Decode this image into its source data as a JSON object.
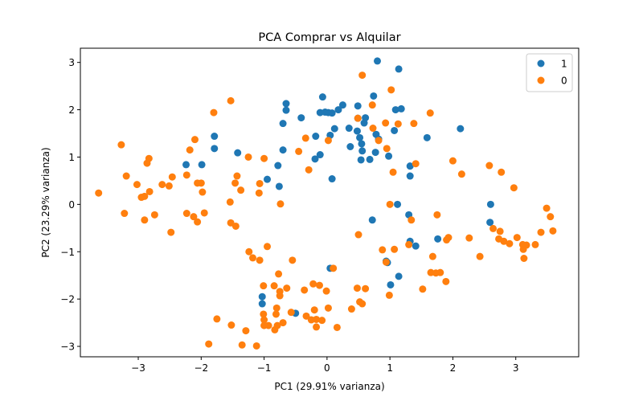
{
  "chart_data": {
    "type": "scatter",
    "title": "PCA Comprar vs Alquilar",
    "xlabel": "PC1 (29.91% varianza)",
    "ylabel": "PC2 (23.29% varianza)",
    "xlim": [
      -3.92,
      4.0
    ],
    "ylim": [
      -3.22,
      3.3
    ],
    "xticks": [
      -3,
      -2,
      -1,
      0,
      1,
      2,
      3
    ],
    "yticks": [
      -3,
      -2,
      -1,
      0,
      1,
      2,
      3
    ],
    "xtick_labels": [
      "−3",
      "−2",
      "−1",
      "0",
      "1",
      "2",
      "3"
    ],
    "ytick_labels": [
      "−3",
      "−2",
      "−1",
      "0",
      "1",
      "2",
      "3"
    ],
    "grid": false,
    "legend_position": "top-right",
    "series": [
      {
        "name": "1",
        "color": "#1f77b4",
        "points": [
          [
            0.8,
            3.03
          ],
          [
            1.14,
            2.86
          ],
          [
            0.74,
            2.29
          ],
          [
            -0.07,
            2.27
          ],
          [
            0.25,
            2.1
          ],
          [
            0.49,
            2.08
          ],
          [
            -0.65,
            2.13
          ],
          [
            -0.65,
            1.99
          ],
          [
            -0.7,
            1.71
          ],
          [
            -0.41,
            1.83
          ],
          [
            1.09,
            2.0
          ],
          [
            1.18,
            2.02
          ],
          [
            0.18,
            2.0
          ],
          [
            -0.11,
            1.94
          ],
          [
            -0.03,
            1.95
          ],
          [
            0.02,
            1.94
          ],
          [
            0.08,
            1.93
          ],
          [
            0.49,
            1.82
          ],
          [
            0.61,
            1.83
          ],
          [
            0.35,
            1.61
          ],
          [
            0.48,
            1.55
          ],
          [
            0.12,
            1.6
          ],
          [
            1.07,
            1.56
          ],
          [
            0.59,
            1.72
          ],
          [
            0.52,
            1.41
          ],
          [
            0.05,
            1.46
          ],
          [
            0.78,
            1.48
          ],
          [
            0.82,
            1.38
          ],
          [
            0.55,
            1.28
          ],
          [
            -0.18,
            1.44
          ],
          [
            2.12,
            1.6
          ],
          [
            1.59,
            1.41
          ],
          [
            0.37,
            1.22
          ],
          [
            0.56,
            1.13
          ],
          [
            0.77,
            1.1
          ],
          [
            -0.7,
            1.15
          ],
          [
            -1.42,
            1.09
          ],
          [
            -1.79,
            1.44
          ],
          [
            -1.79,
            1.18
          ],
          [
            -0.11,
            1.05
          ],
          [
            -0.19,
            0.96
          ],
          [
            0.54,
            0.94
          ],
          [
            0.68,
            0.95
          ],
          [
            0.98,
            1.02
          ],
          [
            1.32,
            0.81
          ],
          [
            -1.99,
            0.84
          ],
          [
            -2.24,
            0.84
          ],
          [
            -0.78,
            0.82
          ],
          [
            1.32,
            0.6
          ],
          [
            0.08,
            0.54
          ],
          [
            -0.95,
            0.53
          ],
          [
            -0.76,
            0.38
          ],
          [
            2.6,
            0.0
          ],
          [
            1.12,
            0.0
          ],
          [
            2.59,
            -0.38
          ],
          [
            0.72,
            -0.33
          ],
          [
            1.3,
            -0.22
          ],
          [
            1.32,
            -0.78
          ],
          [
            1.41,
            -0.88
          ],
          [
            1.76,
            -0.73
          ],
          [
            0.94,
            -1.2
          ],
          [
            0.96,
            -1.23
          ],
          [
            0.05,
            -1.35
          ],
          [
            1.14,
            -1.52
          ],
          [
            1.01,
            -1.7
          ],
          [
            -1.03,
            -1.95
          ],
          [
            -1.03,
            -2.1
          ],
          [
            -0.5,
            -2.3
          ]
        ]
      },
      {
        "name": "0",
        "color": "#ff7f0e",
        "points": [
          [
            0.56,
            2.73
          ],
          [
            1.02,
            2.42
          ],
          [
            -1.53,
            2.19
          ],
          [
            -1.8,
            1.94
          ],
          [
            0.72,
            2.1
          ],
          [
            1.64,
            1.93
          ],
          [
            0.49,
            1.82
          ],
          [
            0.73,
            1.61
          ],
          [
            0.93,
            1.72
          ],
          [
            1.13,
            1.7
          ],
          [
            1.38,
            1.71
          ],
          [
            -2.1,
            1.37
          ],
          [
            -2.18,
            1.15
          ],
          [
            -0.34,
            1.4
          ],
          [
            0.02,
            1.35
          ],
          [
            0.82,
            1.35
          ],
          [
            0.95,
            1.18
          ],
          [
            -3.27,
            1.26
          ],
          [
            -2.83,
            0.97
          ],
          [
            -2.86,
            0.87
          ],
          [
            -1.25,
            1.0
          ],
          [
            -1.0,
            0.97
          ],
          [
            -0.45,
            1.12
          ],
          [
            2.0,
            0.92
          ],
          [
            2.58,
            0.82
          ],
          [
            1.41,
            0.86
          ],
          [
            1.05,
            0.68
          ],
          [
            -0.29,
            0.73
          ],
          [
            -3.19,
            0.6
          ],
          [
            -2.46,
            0.58
          ],
          [
            -2.23,
            0.62
          ],
          [
            -1.43,
            0.6
          ],
          [
            -1.46,
            0.45
          ],
          [
            -1.07,
            0.44
          ],
          [
            -2.62,
            0.42
          ],
          [
            -2.51,
            0.39
          ],
          [
            -2.06,
            0.45
          ],
          [
            -2.0,
            0.45
          ],
          [
            -3.02,
            0.42
          ],
          [
            -2.82,
            0.27
          ],
          [
            -2.95,
            0.15
          ],
          [
            -2.9,
            0.17
          ],
          [
            -1.37,
            0.3
          ],
          [
            -1.08,
            0.24
          ],
          [
            -1.98,
            0.26
          ],
          [
            -3.63,
            0.24
          ],
          [
            2.14,
            0.64
          ],
          [
            2.77,
            0.68
          ],
          [
            2.97,
            0.35
          ],
          [
            -0.74,
            0.01
          ],
          [
            -1.54,
            0.05
          ],
          [
            1.0,
            0.0
          ],
          [
            -3.22,
            -0.19
          ],
          [
            -2.23,
            -0.19
          ],
          [
            -2.12,
            -0.26
          ],
          [
            -2.06,
            -0.37
          ],
          [
            -1.95,
            -0.18
          ],
          [
            -2.74,
            -0.22
          ],
          [
            -2.9,
            -0.33
          ],
          [
            -1.53,
            -0.39
          ],
          [
            -1.45,
            -0.46
          ],
          [
            1.34,
            -0.33
          ],
          [
            1.75,
            -0.22
          ],
          [
            -2.48,
            -0.59
          ],
          [
            0.5,
            -0.64
          ],
          [
            3.49,
            -0.08
          ],
          [
            3.55,
            -0.26
          ],
          [
            3.59,
            -0.56
          ],
          [
            2.64,
            -0.51
          ],
          [
            2.75,
            -0.57
          ],
          [
            3.4,
            -0.59
          ],
          [
            2.73,
            -0.73
          ],
          [
            2.81,
            -0.78
          ],
          [
            2.9,
            -0.83
          ],
          [
            3.02,
            -0.7
          ],
          [
            2.26,
            -0.71
          ],
          [
            1.93,
            -0.7
          ],
          [
            1.9,
            -0.75
          ],
          [
            3.31,
            -0.85
          ],
          [
            3.17,
            -0.86
          ],
          [
            3.11,
            -0.85
          ],
          [
            3.12,
            -0.95
          ],
          [
            3.13,
            -1.14
          ],
          [
            1.3,
            -0.85
          ],
          [
            0.88,
            -0.96
          ],
          [
            1.07,
            -0.95
          ],
          [
            2.43,
            -1.1
          ],
          [
            1.68,
            -1.1
          ],
          [
            -1.24,
            -1.0
          ],
          [
            -1.18,
            -1.13
          ],
          [
            -1.07,
            -1.18
          ],
          [
            -0.95,
            -0.89
          ],
          [
            -0.55,
            -1.18
          ],
          [
            0.1,
            -1.35
          ],
          [
            0.94,
            -1.22
          ],
          [
            1.73,
            -1.45
          ],
          [
            1.65,
            -1.44
          ],
          [
            1.8,
            -1.44
          ],
          [
            1.89,
            -1.63
          ],
          [
            -0.77,
            -1.47
          ],
          [
            -1.01,
            -1.72
          ],
          [
            -0.84,
            -1.72
          ],
          [
            -0.75,
            -1.84
          ],
          [
            -0.64,
            -1.77
          ],
          [
            -0.36,
            -1.81
          ],
          [
            -0.22,
            -1.68
          ],
          [
            -0.12,
            -1.71
          ],
          [
            -0.01,
            -1.83
          ],
          [
            0.48,
            -1.77
          ],
          [
            0.61,
            -1.78
          ],
          [
            0.52,
            -2.06
          ],
          [
            0.56,
            -2.1
          ],
          [
            0.99,
            -1.92
          ],
          [
            1.52,
            -1.79
          ],
          [
            -0.75,
            -1.93
          ],
          [
            -0.8,
            -2.19
          ],
          [
            -0.7,
            -2.5
          ],
          [
            0.02,
            -2.19
          ],
          [
            0.39,
            -2.21
          ],
          [
            -0.2,
            -2.23
          ],
          [
            -0.17,
            -2.43
          ],
          [
            -0.25,
            -2.44
          ],
          [
            -0.08,
            -2.45
          ],
          [
            -0.17,
            -2.59
          ],
          [
            0.16,
            -2.6
          ],
          [
            -0.33,
            -2.36
          ],
          [
            -0.57,
            -2.28
          ],
          [
            -0.81,
            -2.32
          ],
          [
            -0.79,
            -2.56
          ],
          [
            -0.83,
            -2.65
          ],
          [
            -0.93,
            -2.56
          ],
          [
            -1.01,
            -2.32
          ],
          [
            -1.0,
            -2.44
          ],
          [
            -1.0,
            -2.56
          ],
          [
            -1.29,
            -2.67
          ],
          [
            -1.75,
            -2.42
          ],
          [
            -1.52,
            -2.55
          ],
          [
            -1.35,
            -2.97
          ],
          [
            -1.12,
            -2.99
          ],
          [
            -1.88,
            -2.95
          ]
        ]
      }
    ]
  }
}
